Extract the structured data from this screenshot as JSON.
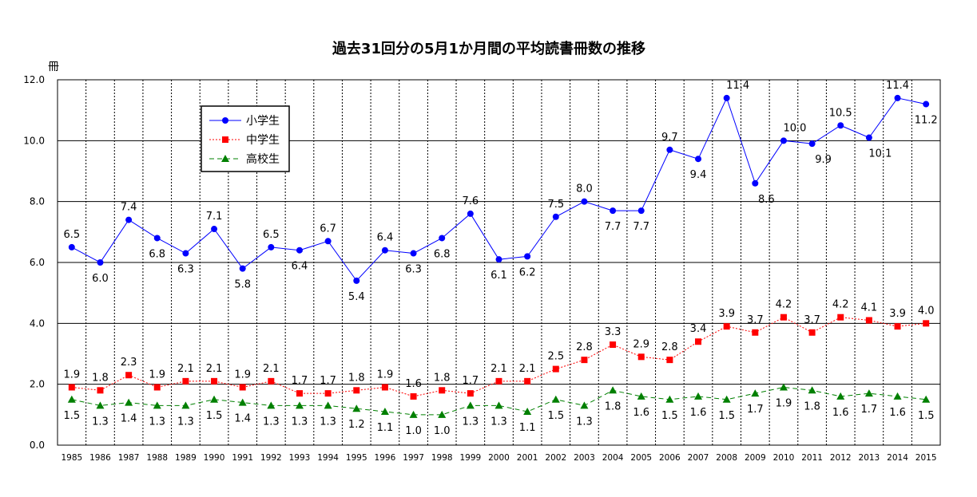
{
  "chart_data": {
    "type": "line",
    "title": "過去31回分の5月1か月間の平均読書冊数の推移",
    "ylabel": "冊",
    "xlabel": "",
    "ylim": [
      0,
      12
    ],
    "yticks": [
      "0.0",
      "2.0",
      "4.0",
      "6.0",
      "8.0",
      "10.0",
      "12.0"
    ],
    "ytick_values": [
      0,
      2,
      4,
      6,
      8,
      10,
      12
    ],
    "grid": true,
    "legend_position": "top-left",
    "categories": [
      "1985",
      "1986",
      "1987",
      "1988",
      "1989",
      "1990",
      "1991",
      "1992",
      "1993",
      "1994",
      "1995",
      "1996",
      "1997",
      "1998",
      "1999",
      "2000",
      "2001",
      "2002",
      "2003",
      "2004",
      "2005",
      "2006",
      "2007",
      "2008",
      "2009",
      "2010",
      "2011",
      "2012",
      "2013",
      "2014",
      "2015"
    ],
    "series": [
      {
        "name": "小学生",
        "color": "#0000ff",
        "marker": "circle",
        "line_style": "solid",
        "values": [
          6.5,
          6.0,
          7.4,
          6.8,
          6.3,
          7.1,
          5.8,
          6.5,
          6.4,
          6.7,
          5.4,
          6.4,
          6.3,
          6.8,
          7.6,
          6.1,
          6.2,
          7.5,
          8.0,
          7.7,
          7.7,
          9.7,
          9.4,
          11.4,
          8.6,
          10.0,
          9.9,
          10.5,
          10.1,
          11.4,
          11.2
        ],
        "labels": [
          "6.5",
          "6.0",
          "7.4",
          "6.8",
          "6.3",
          "7.1",
          "5.8",
          "6.5",
          "6.4",
          "6.7",
          "5.4",
          "6.4",
          "6.3",
          "6.8",
          "7.6",
          "6.1",
          "6.2",
          "7.5",
          "8.0",
          "7.7",
          "7.7",
          "9.7",
          "9.4",
          "11.4",
          "8.6",
          "10.0",
          "9.9",
          "10.5",
          "10.1",
          "11.4",
          "11.2"
        ]
      },
      {
        "name": "中学生",
        "color": "#ff0000",
        "marker": "square",
        "line_style": "dotted",
        "values": [
          1.9,
          1.8,
          2.3,
          1.9,
          2.1,
          2.1,
          1.9,
          2.1,
          1.7,
          1.7,
          1.8,
          1.9,
          1.6,
          1.8,
          1.7,
          2.1,
          2.1,
          2.5,
          2.8,
          3.3,
          2.9,
          2.8,
          3.4,
          3.9,
          3.7,
          4.2,
          3.7,
          4.2,
          4.1,
          3.9,
          4.0
        ],
        "labels": [
          "1.9",
          "1.8",
          "2.3",
          "1.9",
          "2.1",
          "2.1",
          "1.9",
          "2.1",
          "1.7",
          "1.7",
          "1.8",
          "1.9",
          "1.6",
          "1.8",
          "1.7",
          "2.1",
          "2.1",
          "2.5",
          "2.8",
          "3.3",
          "2.9",
          "2.8",
          "3.4",
          "3.9",
          "3.7",
          "4.2",
          "3.7",
          "4.2",
          "4.1",
          "3.9",
          "4.0"
        ]
      },
      {
        "name": "高校生",
        "color": "#008000",
        "marker": "triangle",
        "line_style": "dashed",
        "values": [
          1.5,
          1.3,
          1.4,
          1.3,
          1.3,
          1.5,
          1.4,
          1.3,
          1.3,
          1.3,
          1.2,
          1.1,
          1.0,
          1.0,
          1.3,
          1.3,
          1.1,
          1.5,
          1.3,
          1.8,
          1.6,
          1.5,
          1.6,
          1.5,
          1.7,
          1.9,
          1.8,
          1.6,
          1.7,
          1.6,
          1.5
        ],
        "labels": [
          "1.5",
          "1.3",
          "1.4",
          "1.3",
          "1.3",
          "1.5",
          "1.4",
          "1.3",
          "1.3",
          "1.3",
          "1.2",
          "1.1",
          "1.0",
          "1.0",
          "1.3",
          "1.3",
          "1.1",
          "1.5",
          "1.3",
          "1.8",
          "1.6",
          "1.5",
          "1.6",
          "1.5",
          "1.7",
          "1.9",
          "1.8",
          "1.6",
          "1.7",
          "1.6",
          "1.5"
        ]
      }
    ]
  }
}
